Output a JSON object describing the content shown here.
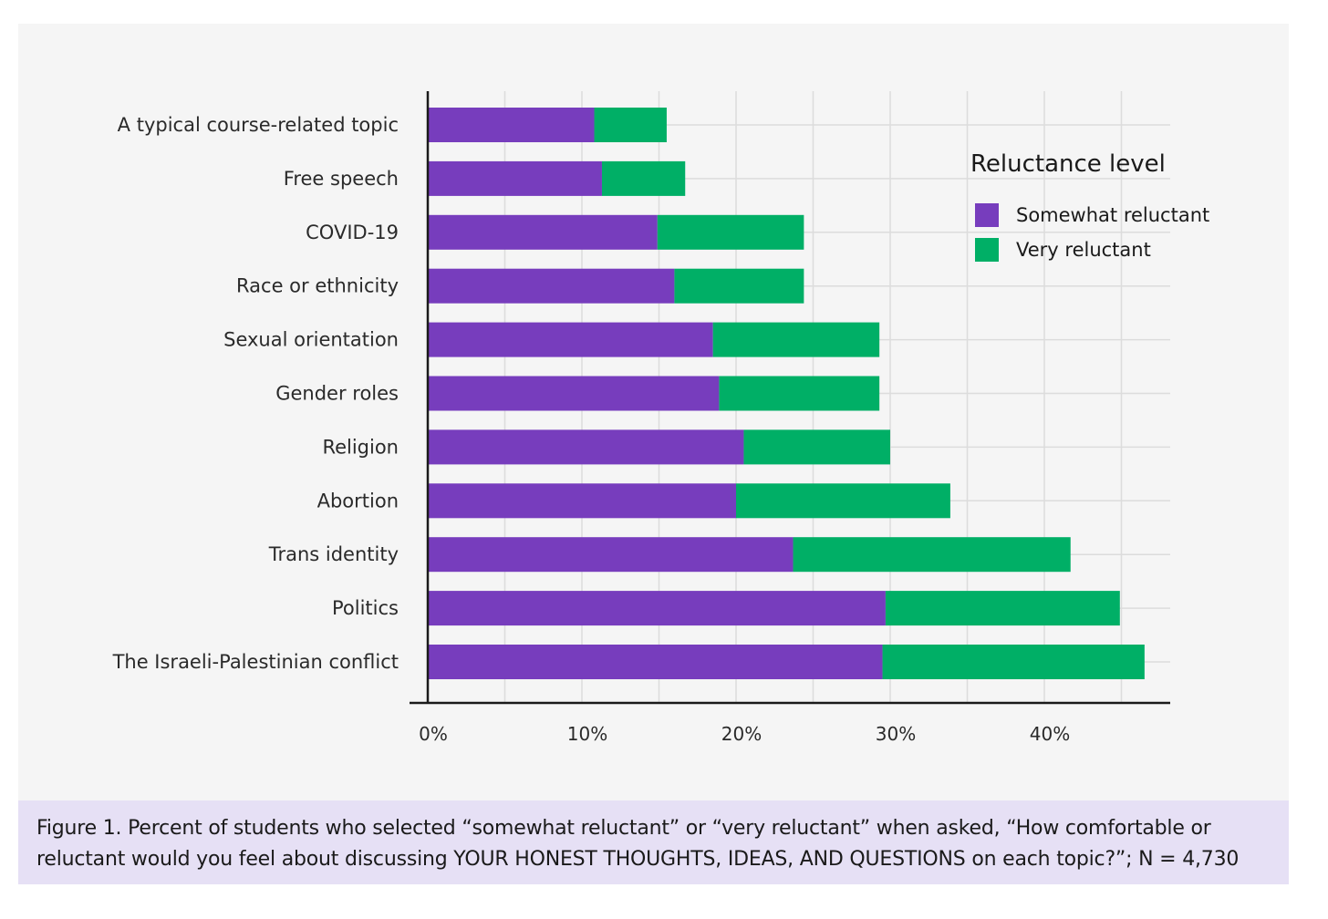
{
  "colors": {
    "somewhat": "#773dbd",
    "very": "#00af66",
    "panel_bg": "#f5f5f5",
    "caption_bg": "#e6e0f5",
    "grid": "#dcdcdc",
    "axis": "#1a1a1a"
  },
  "chart_data": {
    "type": "bar",
    "orientation": "horizontal",
    "stacked": true,
    "categories": [
      "A typical course-related topic",
      "Free speech",
      "COVID-19",
      "Race or ethnicity",
      "Sexual orientation",
      "Gender roles",
      "Religion",
      "Abortion",
      "Trans identity",
      "Politics",
      "The Israeli-Palestinian conflict"
    ],
    "series": [
      {
        "name": "Somewhat reluctant",
        "values": [
          10.8,
          11.3,
          14.9,
          16.0,
          18.5,
          18.9,
          20.5,
          20.0,
          23.7,
          29.7,
          29.5
        ]
      },
      {
        "name": "Very reluctant",
        "values": [
          4.7,
          5.4,
          9.5,
          8.4,
          10.8,
          10.4,
          9.5,
          13.9,
          18.0,
          15.2,
          17.0
        ]
      }
    ],
    "xlim": [
      0,
      48
    ],
    "xticks": [
      "0%",
      "10%",
      "20%",
      "30%",
      "40%"
    ],
    "xtick_values": [
      0,
      10,
      20,
      30,
      40
    ],
    "grid": true,
    "legend": {
      "title": "Reluctance level",
      "placement": "top-right"
    }
  },
  "caption": {
    "line1": "Figure 1. Percent of students who selected “somewhat reluctant” or “very reluctant” when asked, “How comfortable or",
    "line2": "reluctant would you feel about discussing YOUR HONEST THOUGHTS, IDEAS, AND QUESTIONS on each topic?”; N = 4,730"
  }
}
